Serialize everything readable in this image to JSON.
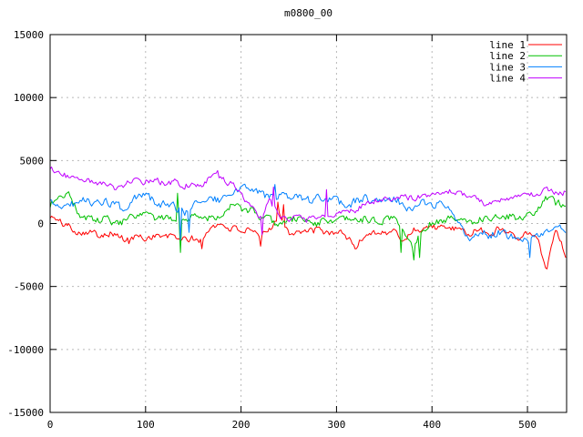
{
  "chart_data": {
    "type": "line",
    "title": "m0800_00",
    "xlabel": "",
    "ylabel": "",
    "xlim": [
      0,
      541
    ],
    "ylim": [
      -15000,
      15000
    ],
    "x_ticks": [
      0,
      100,
      200,
      300,
      400,
      500
    ],
    "y_ticks": [
      -15000,
      -10000,
      -5000,
      0,
      5000,
      10000,
      15000
    ],
    "grid": true,
    "legend_position": "top-right-inside",
    "anchor_step": 10,
    "values_note": "Noisy series; values are trend anchors sampled every 10 x-units, read from the plot",
    "series": [
      {
        "name": "line 1",
        "color": "#ff0000",
        "jitter": 250,
        "values": [
          600,
          100,
          -200,
          -700,
          -600,
          -900,
          -700,
          -900,
          -1400,
          -1000,
          -1200,
          -900,
          -1100,
          -1000,
          -1300,
          -1200,
          -1400,
          -100,
          -100,
          -400,
          -500,
          -700,
          -1100,
          -400,
          800,
          -700,
          -600,
          -700,
          -500,
          -800,
          -600,
          -1000,
          -1900,
          -900,
          -600,
          -800,
          -600,
          -1400,
          -500,
          -400,
          -200,
          -400,
          -300,
          -700,
          -800,
          -500,
          -900,
          -400,
          -600,
          -1000,
          -700,
          -1200,
          -3500,
          -300,
          -2500
        ]
      },
      {
        "name": "line 2",
        "color": "#00c000",
        "jitter": 280,
        "values": [
          1450,
          2300,
          2400,
          700,
          400,
          200,
          400,
          -100,
          300,
          500,
          700,
          400,
          300,
          500,
          300,
          700,
          500,
          500,
          800,
          1400,
          1200,
          1000,
          500,
          200,
          0,
          300,
          400,
          200,
          0,
          300,
          100,
          300,
          200,
          400,
          100,
          300,
          500,
          -600,
          -1800,
          -300,
          0,
          300,
          300,
          300,
          100,
          400,
          400,
          700,
          600,
          300,
          600,
          1100,
          2000,
          1600,
          1600
        ]
      },
      {
        "name": "line 3",
        "color": "#0080ff",
        "jitter": 300,
        "values": [
          1600,
          1400,
          1500,
          1700,
          1900,
          1500,
          1700,
          1400,
          900,
          2000,
          2300,
          1700,
          1500,
          1300,
          800,
          1600,
          1900,
          2000,
          1800,
          2300,
          2800,
          2950,
          2400,
          2100,
          2200,
          1900,
          2000,
          1800,
          2000,
          1900,
          1800,
          1400,
          1800,
          2000,
          1800,
          2100,
          1900,
          1600,
          1000,
          1600,
          1500,
          1500,
          1300,
          -400,
          -1100,
          -600,
          -1000,
          -600,
          -1100,
          -800,
          -1200,
          -700,
          -900,
          -500,
          -400
        ]
      },
      {
        "name": "line 4",
        "color": "#c000ff",
        "jitter": 220,
        "values": [
          4400,
          4000,
          3700,
          3500,
          3400,
          3200,
          3000,
          2700,
          3200,
          3400,
          3300,
          3600,
          3100,
          3300,
          3000,
          3200,
          3100,
          3800,
          3500,
          3200,
          2300,
          1500,
          300,
          1800,
          600,
          400,
          400,
          300,
          400,
          500,
          700,
          900,
          1100,
          1500,
          1800,
          2000,
          1900,
          2100,
          2000,
          2200,
          2300,
          2500,
          2600,
          2400,
          2200,
          1700,
          1500,
          1700,
          2000,
          2100,
          2200,
          2300,
          2800,
          2400,
          2500
        ]
      }
    ],
    "spikes": [
      {
        "series": "line 1",
        "x": 83,
        "y": -1600
      },
      {
        "series": "line 1",
        "x": 159,
        "y": -2000
      },
      {
        "series": "line 1",
        "x": 221,
        "y": -1800
      },
      {
        "series": "line 1",
        "x": 239,
        "y": 1700
      },
      {
        "series": "line 1",
        "x": 244,
        "y": 1500
      },
      {
        "series": "line 2",
        "x": 134,
        "y": 2400
      },
      {
        "series": "line 2",
        "x": 136,
        "y": -2300
      },
      {
        "series": "line 2",
        "x": 368,
        "y": -2300
      },
      {
        "series": "line 2",
        "x": 381,
        "y": -2900
      },
      {
        "series": "line 2",
        "x": 387,
        "y": -2700
      },
      {
        "series": "line 3",
        "x": 98,
        "y": 2400
      },
      {
        "series": "line 3",
        "x": 137,
        "y": -1300
      },
      {
        "series": "line 3",
        "x": 146,
        "y": -700
      },
      {
        "series": "line 3",
        "x": 236,
        "y": 3100
      },
      {
        "series": "line 3",
        "x": 503,
        "y": -2700
      },
      {
        "series": "line 4",
        "x": 175,
        "y": 4200
      },
      {
        "series": "line 4",
        "x": 222,
        "y": -900
      },
      {
        "series": "line 4",
        "x": 234,
        "y": 2900
      },
      {
        "series": "line 4",
        "x": 289,
        "y": 2700
      }
    ],
    "colors": {
      "background": "#ffffff",
      "border": "#000000",
      "grid": "#b9b9b9",
      "text": "#000000"
    }
  }
}
